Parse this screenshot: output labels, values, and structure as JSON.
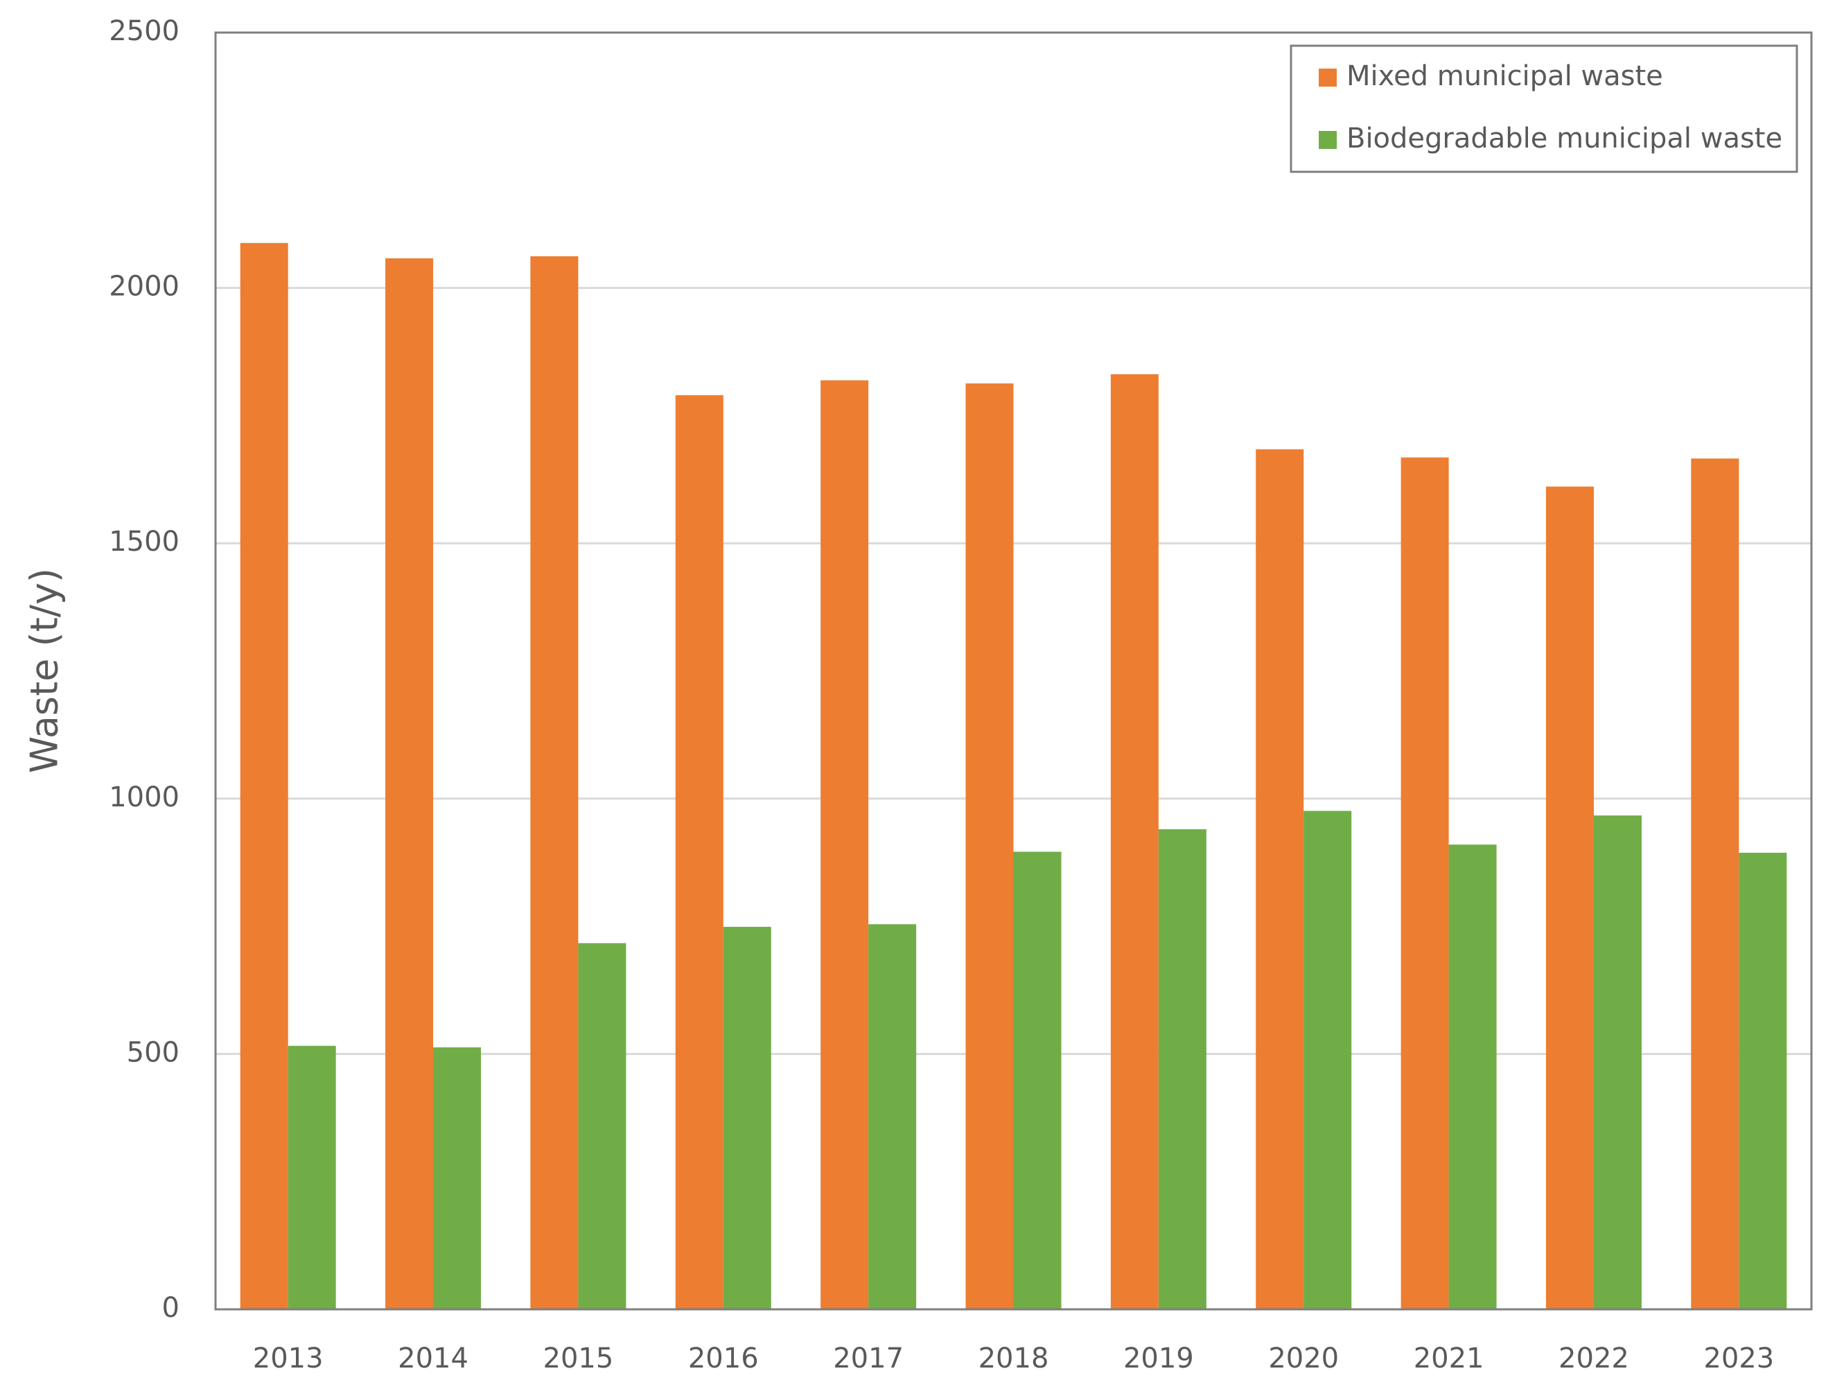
{
  "chart_data": {
    "type": "bar",
    "y_label": "Waste (t/y)",
    "categories": [
      "2013",
      "2014",
      "2015",
      "2016",
      "2017",
      "2018",
      "2019",
      "2020",
      "2021",
      "2022",
      "2023"
    ],
    "series": [
      {
        "name": "Mixed municipal waste",
        "color": "#ed7d31",
        "values": [
          2088,
          2058,
          2062,
          1790,
          1819,
          1813,
          1831,
          1684,
          1668,
          1611,
          1666
        ]
      },
      {
        "name": "Biodegradable municipal waste",
        "color": "#70ad47",
        "values": [
          516,
          513,
          717,
          749,
          754,
          896,
          940,
          976,
          910,
          967,
          894
        ]
      }
    ],
    "ylim": [
      0,
      2500
    ],
    "yticks": [
      0,
      500,
      1000,
      1500,
      2000,
      2500
    ],
    "grid": true,
    "legend": "upper right"
  }
}
